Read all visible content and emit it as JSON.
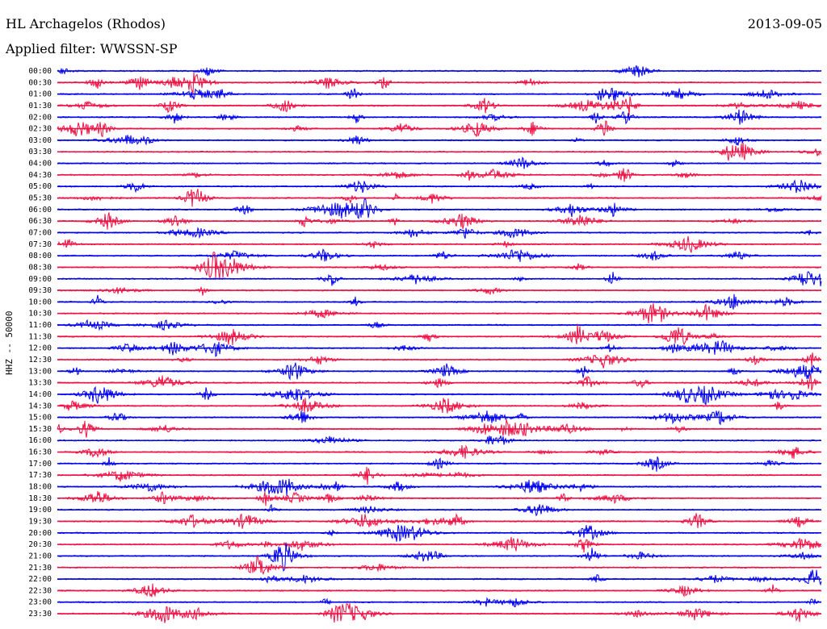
{
  "header": {
    "station": "HL Archagelos (Rhodos)",
    "date": "2013-09-05",
    "filter": "Applied filter: WWSSN-SP"
  },
  "chart_data": {
    "type": "line",
    "title": "HL Archagelos (Rhodos)",
    "subtitle": "Applied filter: WWSSN-SP",
    "ylabel": "HHZ -- 50000",
    "xlabel": "",
    "row_labels": [
      "00:00",
      "00:30",
      "01:00",
      "01:30",
      "02:00",
      "02:30",
      "03:00",
      "03:30",
      "04:00",
      "04:30",
      "05:00",
      "05:30",
      "06:00",
      "06:30",
      "07:00",
      "07:30",
      "08:00",
      "08:30",
      "09:00",
      "09:30",
      "10:00",
      "10:30",
      "11:00",
      "11:30",
      "12:00",
      "12:30",
      "13:00",
      "13:30",
      "14:00",
      "14:30",
      "15:00",
      "15:30",
      "16:00",
      "16:30",
      "17:00",
      "17:30",
      "18:00",
      "18:30",
      "19:00",
      "19:30",
      "20:00",
      "20:30",
      "21:00",
      "21:30",
      "22:00",
      "22:30",
      "23:00",
      "23:30"
    ],
    "colors": [
      "#0000ee",
      "#ee1144"
    ],
    "grid": false,
    "legend": "none"
  }
}
